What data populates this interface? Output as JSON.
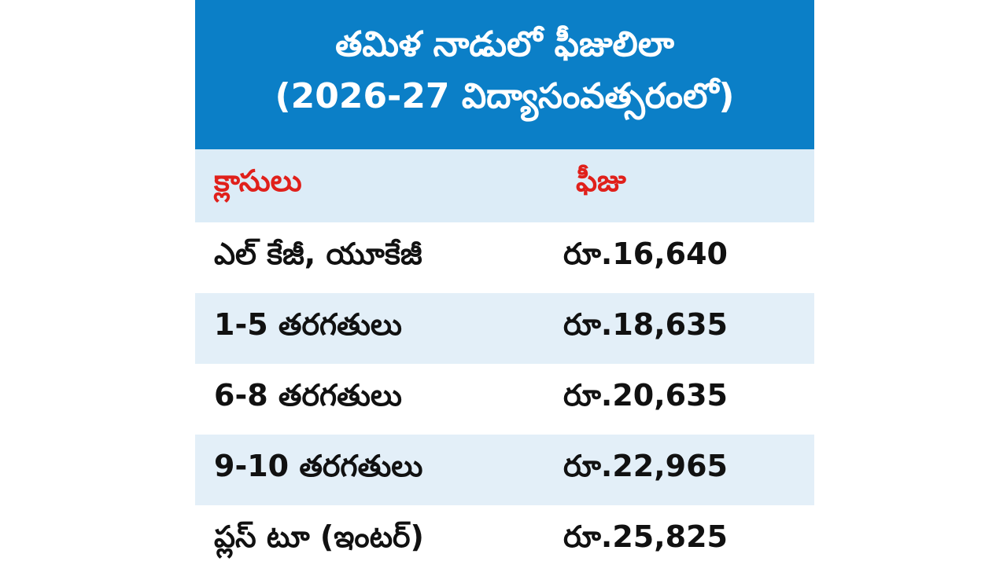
{
  "header": {
    "title": [
      "తమిళ నాడులో ఫీజులిలా",
      "(2026-27 విద్యాసంవత్సరంలో)"
    ]
  },
  "table": {
    "columns": [
      "క్లాసులు",
      "ఫీజు"
    ],
    "rows": [
      [
        "ఎల్ కేజీ, యూకేజీ",
        "రూ.16,640"
      ],
      [
        "1-5 తరగతులు",
        "రూ.18,635"
      ],
      [
        "6-8 తరగతులు",
        "రూ.20,635"
      ],
      [
        "9-10 తరగతులు",
        "రూ.22,965"
      ],
      [
        "ప్లస్ టూ (ఇంటర్)",
        "రూ.25,825"
      ]
    ]
  }
}
